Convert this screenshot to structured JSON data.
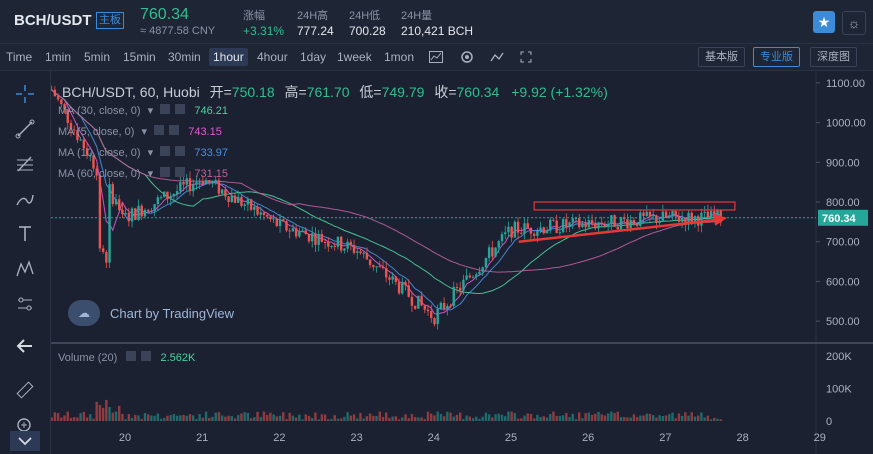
{
  "header": {
    "pair": "BCH/USDT",
    "badge": "主板",
    "price": "760.34",
    "price_cny": "≈ 4877.58 CNY",
    "stats": [
      {
        "label": "涨幅",
        "value": "+3.31%"
      },
      {
        "label": "24H高",
        "value": "777.24"
      },
      {
        "label": "24H低",
        "value": "700.28"
      },
      {
        "label": "24H量",
        "value": "210,421 BCH"
      }
    ]
  },
  "toolbar": {
    "timeframes": [
      "Time",
      "1min",
      "5min",
      "15min",
      "30min",
      "1hour",
      "4hour",
      "1day",
      "1week",
      "1mon"
    ],
    "active_timeframe": "1hour",
    "versions": [
      "基本版",
      "专业版",
      "深度图"
    ],
    "active_version": "专业版"
  },
  "ohlc": {
    "symbol": "BCH/USDT, 60, Huobi",
    "open_label": "开=",
    "open": "750.18",
    "high_label": "高=",
    "high": "761.70",
    "low_label": "低=",
    "low": "749.79",
    "close_label": "收=",
    "close": "760.34",
    "change": "+9.92 (+1.32%)"
  },
  "indicators": [
    {
      "label": "MA (30, close, 0)",
      "value": "746.21",
      "color": "#4bd1a0"
    },
    {
      "label": "MA (5, close, 0)",
      "value": "743.15",
      "color": "#e05ad6"
    },
    {
      "label": "MA (10, close, 0)",
      "value": "733.97",
      "color": "#4a90e2"
    },
    {
      "label": "MA (60, close, 0)",
      "value": "731.15",
      "color": "#c060a0"
    }
  ],
  "volume": {
    "label": "Volume (20)",
    "value": "2.562K"
  },
  "watermark": "Chart by TradingView",
  "colors": {
    "up": "#26a69a",
    "down": "#ef5350",
    "accent": "#3b8bd9"
  },
  "chart_data": {
    "type": "candlestick",
    "title": "BCH/USDT, 60, Huobi",
    "x_ticks": [
      "20",
      "21",
      "22",
      "23",
      "24",
      "25",
      "26",
      "27",
      "28",
      "29"
    ],
    "y_ticks": [
      "1100.00",
      "1000.00",
      "900.00",
      "800.00",
      "700.00",
      "600.00",
      "500.00"
    ],
    "ylim": [
      450,
      1130
    ],
    "volume_ticks": [
      "200K",
      "100K",
      "0"
    ],
    "volume_ylim": [
      0,
      210
    ],
    "current_price": 760.34,
    "daily_closes": [
      {
        "day": "19",
        "close": 1100
      },
      {
        "day": "20",
        "close": 760
      },
      {
        "day": "21",
        "close": 860
      },
      {
        "day": "22",
        "close": 740
      },
      {
        "day": "23",
        "close": 680
      },
      {
        "day": "24",
        "close": 510
      },
      {
        "day": "25",
        "close": 730
      },
      {
        "day": "26",
        "close": 745
      },
      {
        "day": "27",
        "close": 760
      }
    ],
    "annotations": [
      {
        "type": "rectangle",
        "y_low": 780,
        "y_high": 800,
        "x_from": "25.3",
        "x_to": "27.9"
      },
      {
        "type": "arrow",
        "from": {
          "day": 25.1,
          "price": 700
        },
        "to": {
          "day": 27.8,
          "price": 760
        }
      }
    ]
  }
}
